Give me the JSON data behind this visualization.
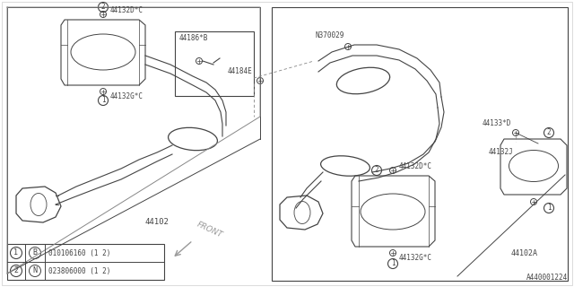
{
  "bg_color": "#ffffff",
  "lc": "#444444",
  "title_ref": "A440001224",
  "labels": {
    "44132D_C_left": "44132D*C",
    "44132G_C_left": "44132G*C",
    "44186_B": "44186*B",
    "44184E": "44184E",
    "44102": "44102",
    "N370029": "N370029",
    "44133_D": "44133*D",
    "44132J": "44132J",
    "44132D_C_right": "44132D*C",
    "44132G_C_right": "44132G*C",
    "44102A": "44102A"
  },
  "legend_part1": "010106160 (1 2)",
  "legend_part2": "023806000 (1 2)",
  "front_label": "FRONT"
}
